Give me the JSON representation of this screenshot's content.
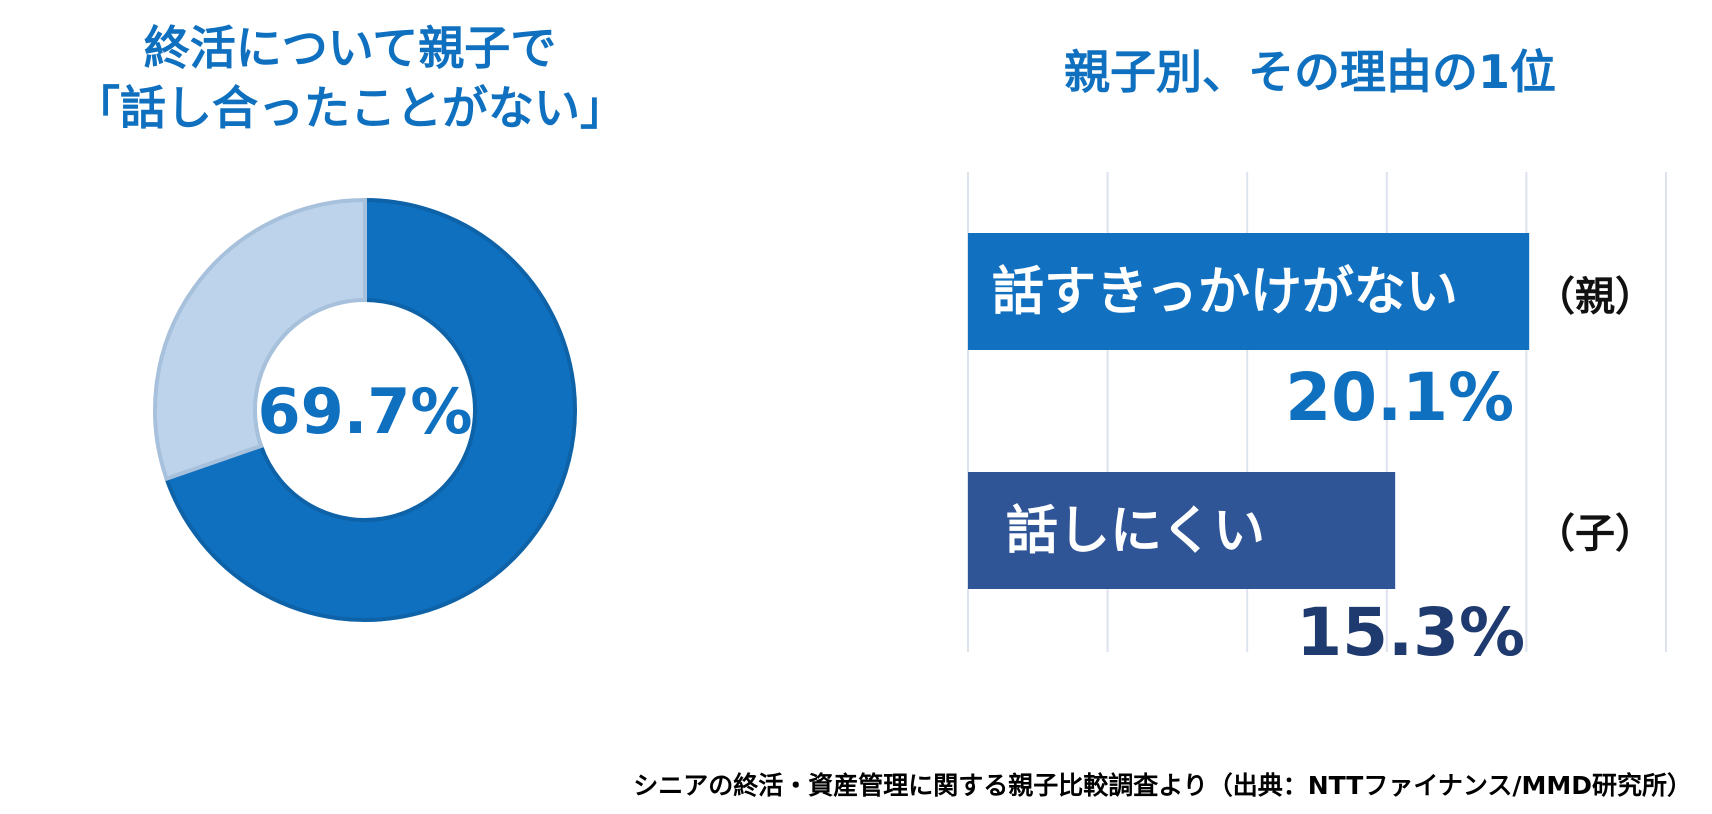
{
  "left": {
    "title_line1": "終活について親子で",
    "title_line2": "「話し合ったことがない」"
  },
  "right": {
    "title": "親子別、その理由の1位"
  },
  "source": "シニアの終活・資産管理に関する親子比較調査より（出典：NTTファイナンス/MMD研究所）",
  "colors": {
    "accent": "#0f70bf",
    "donut_light": "#bcd3eb",
    "donut_light_border": "#a7c0db",
    "bar_parent": "#1170c0",
    "bar_child": "#2f5597",
    "child_value": "#1e3a6e"
  },
  "chart_data": [
    {
      "type": "pie",
      "title": "終活について親子で「話し合ったことがない」",
      "center_label": "69.7%",
      "slices": [
        {
          "label": "話し合ったことがない",
          "value": 69.7
        },
        {
          "label": "",
          "value": 30.3
        }
      ]
    },
    {
      "type": "bar",
      "orientation": "horizontal",
      "title": "親子別、その理由の1位",
      "xlim": [
        0,
        25
      ],
      "grid": true,
      "bars": [
        {
          "label": "話すきっかけがない",
          "group": "（親）",
          "value": 20.1,
          "value_label": "20.1%"
        },
        {
          "label": "話しにくい",
          "group": "（子）",
          "value": 15.3,
          "value_label": "15.3%"
        }
      ]
    }
  ]
}
